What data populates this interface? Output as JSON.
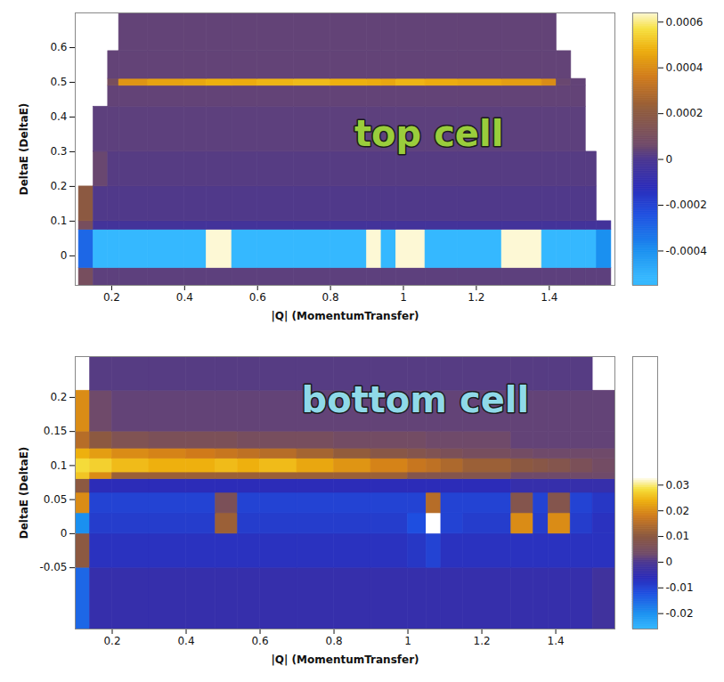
{
  "chart_data": [
    {
      "type": "heatmap",
      "x_label": "|Q| (MomentumTransfer)",
      "y_label": "DeltaE (DeltaE)",
      "xlim": [
        0.1,
        1.58
      ],
      "ylim": [
        -0.085,
        0.7
      ],
      "xticks": [
        0.2,
        0.4,
        0.6,
        0.8,
        1,
        1.2,
        1.4
      ],
      "yticks": [
        0,
        0.1,
        0.2,
        0.3,
        0.4,
        0.5,
        0.6
      ],
      "x_edges": [
        0.11,
        0.15,
        0.19,
        0.22,
        0.3,
        0.4,
        0.46,
        0.53,
        0.6,
        0.7,
        0.8,
        0.9,
        0.94,
        0.98,
        1.06,
        1.15,
        1.27,
        1.38,
        1.42,
        1.46,
        1.5,
        1.53,
        1.57
      ],
      "y_edges": [
        -0.085,
        -0.035,
        0.075,
        0.1,
        0.2,
        0.3,
        0.43,
        0.49,
        0.51,
        0.59,
        0.7
      ],
      "cells": [
        [
          0.0001,
          3e-05,
          3e-05,
          3e-05,
          3e-05,
          3e-05,
          3e-05,
          3e-05,
          3e-05,
          3e-05,
          3e-05,
          3e-05,
          3e-05,
          3e-05,
          3e-05,
          3e-05,
          3e-05,
          3e-05,
          3e-05,
          3e-05,
          3e-05,
          3e-05
        ],
        [
          -0.0003,
          -0.00055,
          -0.00055,
          -0.00055,
          -0.00055,
          -0.00055,
          0.00064,
          -0.00055,
          -0.00055,
          -0.00055,
          -0.00055,
          0.00064,
          -0.00055,
          0.00064,
          -0.00055,
          -0.00055,
          0.00064,
          -0.00055,
          -0.00055,
          -0.00055,
          -0.00055,
          -0.0004
        ],
        [
          0.0001,
          -3e-05,
          -3e-05,
          -3e-05,
          -3e-05,
          -3e-05,
          -3e-05,
          -3e-05,
          -3e-05,
          -3e-05,
          -3e-05,
          -3e-05,
          -3e-05,
          -3e-05,
          -3e-05,
          -3e-05,
          -3e-05,
          -3e-05,
          -3e-05,
          -3e-05,
          -3e-05,
          -3e-05
        ],
        [
          0.0002,
          1e-05,
          1e-05,
          1e-05,
          1e-05,
          1e-05,
          1e-05,
          1e-05,
          1e-05,
          1e-05,
          1e-05,
          1e-05,
          1e-05,
          1e-05,
          1e-05,
          1e-05,
          1e-05,
          1e-05,
          1e-05,
          1e-05,
          1e-05,
          null
        ],
        [
          null,
          5e-05,
          2e-05,
          2e-05,
          2e-05,
          2e-05,
          2e-05,
          2e-05,
          2e-05,
          2e-05,
          2e-05,
          2e-05,
          2e-05,
          2e-05,
          2e-05,
          2e-05,
          2e-05,
          2e-05,
          2e-05,
          2e-05,
          2e-05,
          null
        ],
        [
          null,
          3e-05,
          3e-05,
          3e-05,
          3e-05,
          3e-05,
          3e-05,
          3e-05,
          3e-05,
          3e-05,
          3e-05,
          3e-05,
          3e-05,
          3e-05,
          3e-05,
          3e-05,
          3e-05,
          3e-05,
          3e-05,
          3e-05,
          null,
          null
        ],
        [
          null,
          null,
          4e-05,
          4e-05,
          4e-05,
          4e-05,
          4e-05,
          4e-05,
          4e-05,
          4e-05,
          4e-05,
          4e-05,
          4e-05,
          4e-05,
          4e-05,
          4e-05,
          4e-05,
          4e-05,
          4e-05,
          4e-05,
          null,
          null
        ],
        [
          null,
          null,
          0.0001,
          0.00042,
          0.00045,
          0.00046,
          0.00048,
          0.00047,
          0.00049,
          0.0005,
          0.00048,
          0.00047,
          0.00046,
          0.00049,
          0.00047,
          0.00046,
          0.00044,
          0.0004,
          5e-05,
          4e-05,
          null,
          null
        ],
        [
          null,
          null,
          4e-05,
          4e-05,
          4e-05,
          4e-05,
          4e-05,
          4e-05,
          4e-05,
          4e-05,
          4e-05,
          4e-05,
          4e-05,
          4e-05,
          4e-05,
          4e-05,
          4e-05,
          4e-05,
          4e-05,
          null,
          null,
          null
        ],
        [
          null,
          null,
          null,
          4e-05,
          4e-05,
          4e-05,
          4e-05,
          4e-05,
          4e-05,
          4e-05,
          4e-05,
          4e-05,
          4e-05,
          4e-05,
          4e-05,
          4e-05,
          4e-05,
          4e-05,
          null,
          null,
          null,
          null
        ]
      ],
      "colorbar": {
        "range": [
          -0.00055,
          0.00064
        ],
        "ticks": [
          -0.0004,
          -0.0002,
          0,
          0.0002,
          0.0004,
          0.0006
        ]
      },
      "annotations": [
        {
          "text": "top cell",
          "x": 1.07,
          "y": 0.35,
          "color": "#9acd3c"
        }
      ]
    },
    {
      "type": "heatmap",
      "x_label": "|Q| (MomentumTransfer)",
      "y_label": "DeltaE (DeltaE)",
      "xlim": [
        0.1,
        1.56
      ],
      "ylim": [
        -0.14,
        0.26
      ],
      "xticks": [
        0.2,
        0.4,
        0.6,
        0.8,
        1,
        1.2,
        1.4
      ],
      "yticks": [
        -0.05,
        0,
        0.05,
        0.1,
        0.15,
        0.2
      ],
      "x_edges": [
        0.1,
        0.14,
        0.2,
        0.3,
        0.4,
        0.48,
        0.54,
        0.6,
        0.7,
        0.8,
        0.9,
        1.0,
        1.05,
        1.09,
        1.15,
        1.28,
        1.34,
        1.38,
        1.44,
        1.5,
        1.56
      ],
      "y_edges": [
        -0.14,
        -0.05,
        0,
        0.03,
        0.06,
        0.08,
        0.09,
        0.11,
        0.125,
        0.15,
        0.21,
        0.26
      ],
      "cells": [
        [
          -0.015,
          -0.004,
          -0.004,
          -0.004,
          -0.004,
          -0.004,
          -0.004,
          -0.004,
          -0.004,
          -0.004,
          -0.004,
          -0.004,
          -0.004,
          -0.004,
          -0.004,
          -0.004,
          -0.004,
          -0.004,
          -0.004,
          -0.002
        ],
        [
          0.01,
          -0.007,
          -0.007,
          -0.007,
          -0.007,
          -0.007,
          -0.007,
          -0.007,
          -0.007,
          -0.007,
          -0.007,
          -0.008,
          -0.01,
          -0.007,
          -0.007,
          -0.007,
          -0.007,
          -0.007,
          -0.007,
          -0.007
        ],
        [
          -0.02,
          -0.009,
          -0.009,
          -0.009,
          -0.009,
          0.012,
          -0.009,
          -0.009,
          -0.009,
          -0.009,
          -0.009,
          -0.012,
          0.034,
          -0.01,
          -0.009,
          0.02,
          -0.009,
          0.02,
          -0.009,
          -0.007
        ],
        [
          0.02,
          -0.01,
          -0.01,
          -0.01,
          -0.01,
          0.006,
          -0.01,
          -0.01,
          -0.01,
          -0.01,
          -0.01,
          -0.01,
          0.015,
          -0.01,
          -0.01,
          0.008,
          -0.01,
          0.008,
          -0.01,
          -0.008
        ],
        [
          0.01,
          -0.006,
          -0.006,
          -0.006,
          -0.006,
          -0.006,
          -0.006,
          -0.006,
          -0.006,
          -0.006,
          -0.006,
          -0.006,
          -0.006,
          -0.006,
          -0.006,
          -0.004,
          -0.004,
          -0.004,
          -0.004,
          -0.004
        ],
        [
          0.026,
          0.02,
          0.012,
          0.012,
          0.012,
          0.012,
          0.012,
          0.012,
          0.012,
          0.012,
          0.012,
          0.008,
          0.008,
          0.008,
          0.008,
          0.003,
          0.003,
          0.003,
          0.003,
          0.003
        ],
        [
          0.028,
          0.027,
          0.025,
          0.024,
          0.024,
          0.025,
          0.024,
          0.025,
          0.023,
          0.021,
          0.019,
          0.017,
          0.016,
          0.014,
          0.012,
          0.01,
          0.009,
          0.008,
          0.006,
          0.004
        ],
        [
          0.024,
          0.022,
          0.02,
          0.019,
          0.018,
          0.017,
          0.016,
          0.015,
          0.013,
          0.011,
          0.009,
          0.008,
          0.007,
          0.006,
          0.005,
          0.004,
          0.003,
          0.003,
          0.003,
          0.003
        ],
        [
          0.015,
          0.01,
          0.007,
          0.006,
          0.006,
          0.006,
          0.005,
          0.005,
          0.005,
          0.004,
          0.004,
          0.004,
          0.003,
          0.003,
          0.003,
          0.002,
          0.002,
          0.002,
          0.002,
          0.002
        ],
        [
          0.02,
          0.003,
          0.002,
          0.002,
          0.002,
          0.002,
          0.002,
          0.002,
          0.002,
          0.002,
          0.002,
          0.002,
          0.002,
          0.002,
          0.002,
          0.002,
          0.002,
          0.002,
          0.002,
          0.002
        ],
        [
          null,
          0.001,
          0.001,
          0.001,
          0.001,
          0.001,
          0.001,
          0.001,
          0.001,
          0.001,
          0.001,
          0.001,
          0.001,
          0.001,
          0.001,
          0.001,
          0.001,
          0.001,
          0.001,
          null
        ]
      ],
      "colorbar": {
        "range": [
          -0.026,
          0.08
        ],
        "ticks": [
          -0.02,
          -0.01,
          0,
          0.01,
          0.02,
          0.03
        ]
      },
      "annotations": [
        {
          "text": "bottom cell",
          "x": 1.02,
          "y": 0.195,
          "color": "#8fd9e8"
        }
      ]
    }
  ]
}
